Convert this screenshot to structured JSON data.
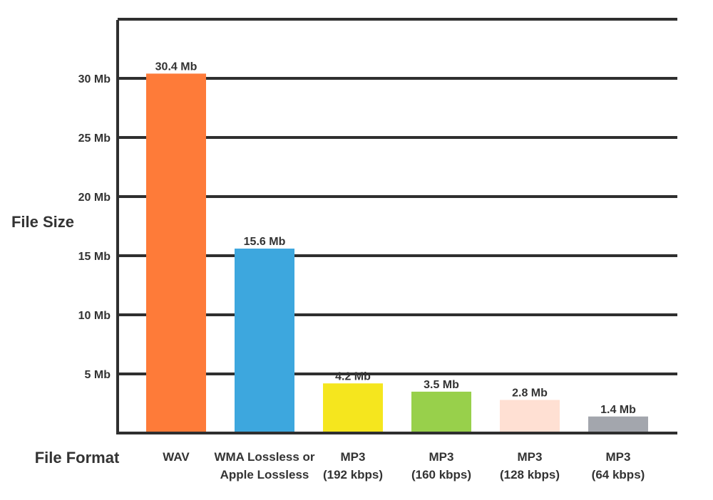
{
  "chart_data": {
    "type": "bar",
    "ylabel": "File Size",
    "xlabel": "File Format",
    "ylim": [
      0,
      35
    ],
    "grid": true,
    "yticks": [
      {
        "value": 5,
        "label": "5 Mb"
      },
      {
        "value": 10,
        "label": "10 Mb"
      },
      {
        "value": 15,
        "label": "15 Mb"
      },
      {
        "value": 20,
        "label": "20 Mb"
      },
      {
        "value": 25,
        "label": "25 Mb"
      },
      {
        "value": 30,
        "label": "30 Mb"
      }
    ],
    "categories": [
      [
        "WAV"
      ],
      [
        "WMA Lossless or",
        "Apple Lossless"
      ],
      [
        "MP3",
        "(192 kbps)"
      ],
      [
        "MP3",
        "(160 kbps)"
      ],
      [
        "MP3",
        "(128 kbps)"
      ],
      [
        "MP3",
        "(64 kbps)"
      ]
    ],
    "values": [
      30.4,
      15.6,
      4.2,
      3.5,
      2.8,
      1.4
    ],
    "data_labels": [
      "30.4 Mb",
      "15.6 Mb",
      "4.2 Mb",
      "3.5 Mb",
      "2.8 Mb",
      "1.4 Mb"
    ],
    "colors": [
      "#fe7b39",
      "#3da7de",
      "#f5e61e",
      "#98d04b",
      "#ffe0d3",
      "#a3a6ad"
    ],
    "grid_color": "#2f2f2f"
  }
}
